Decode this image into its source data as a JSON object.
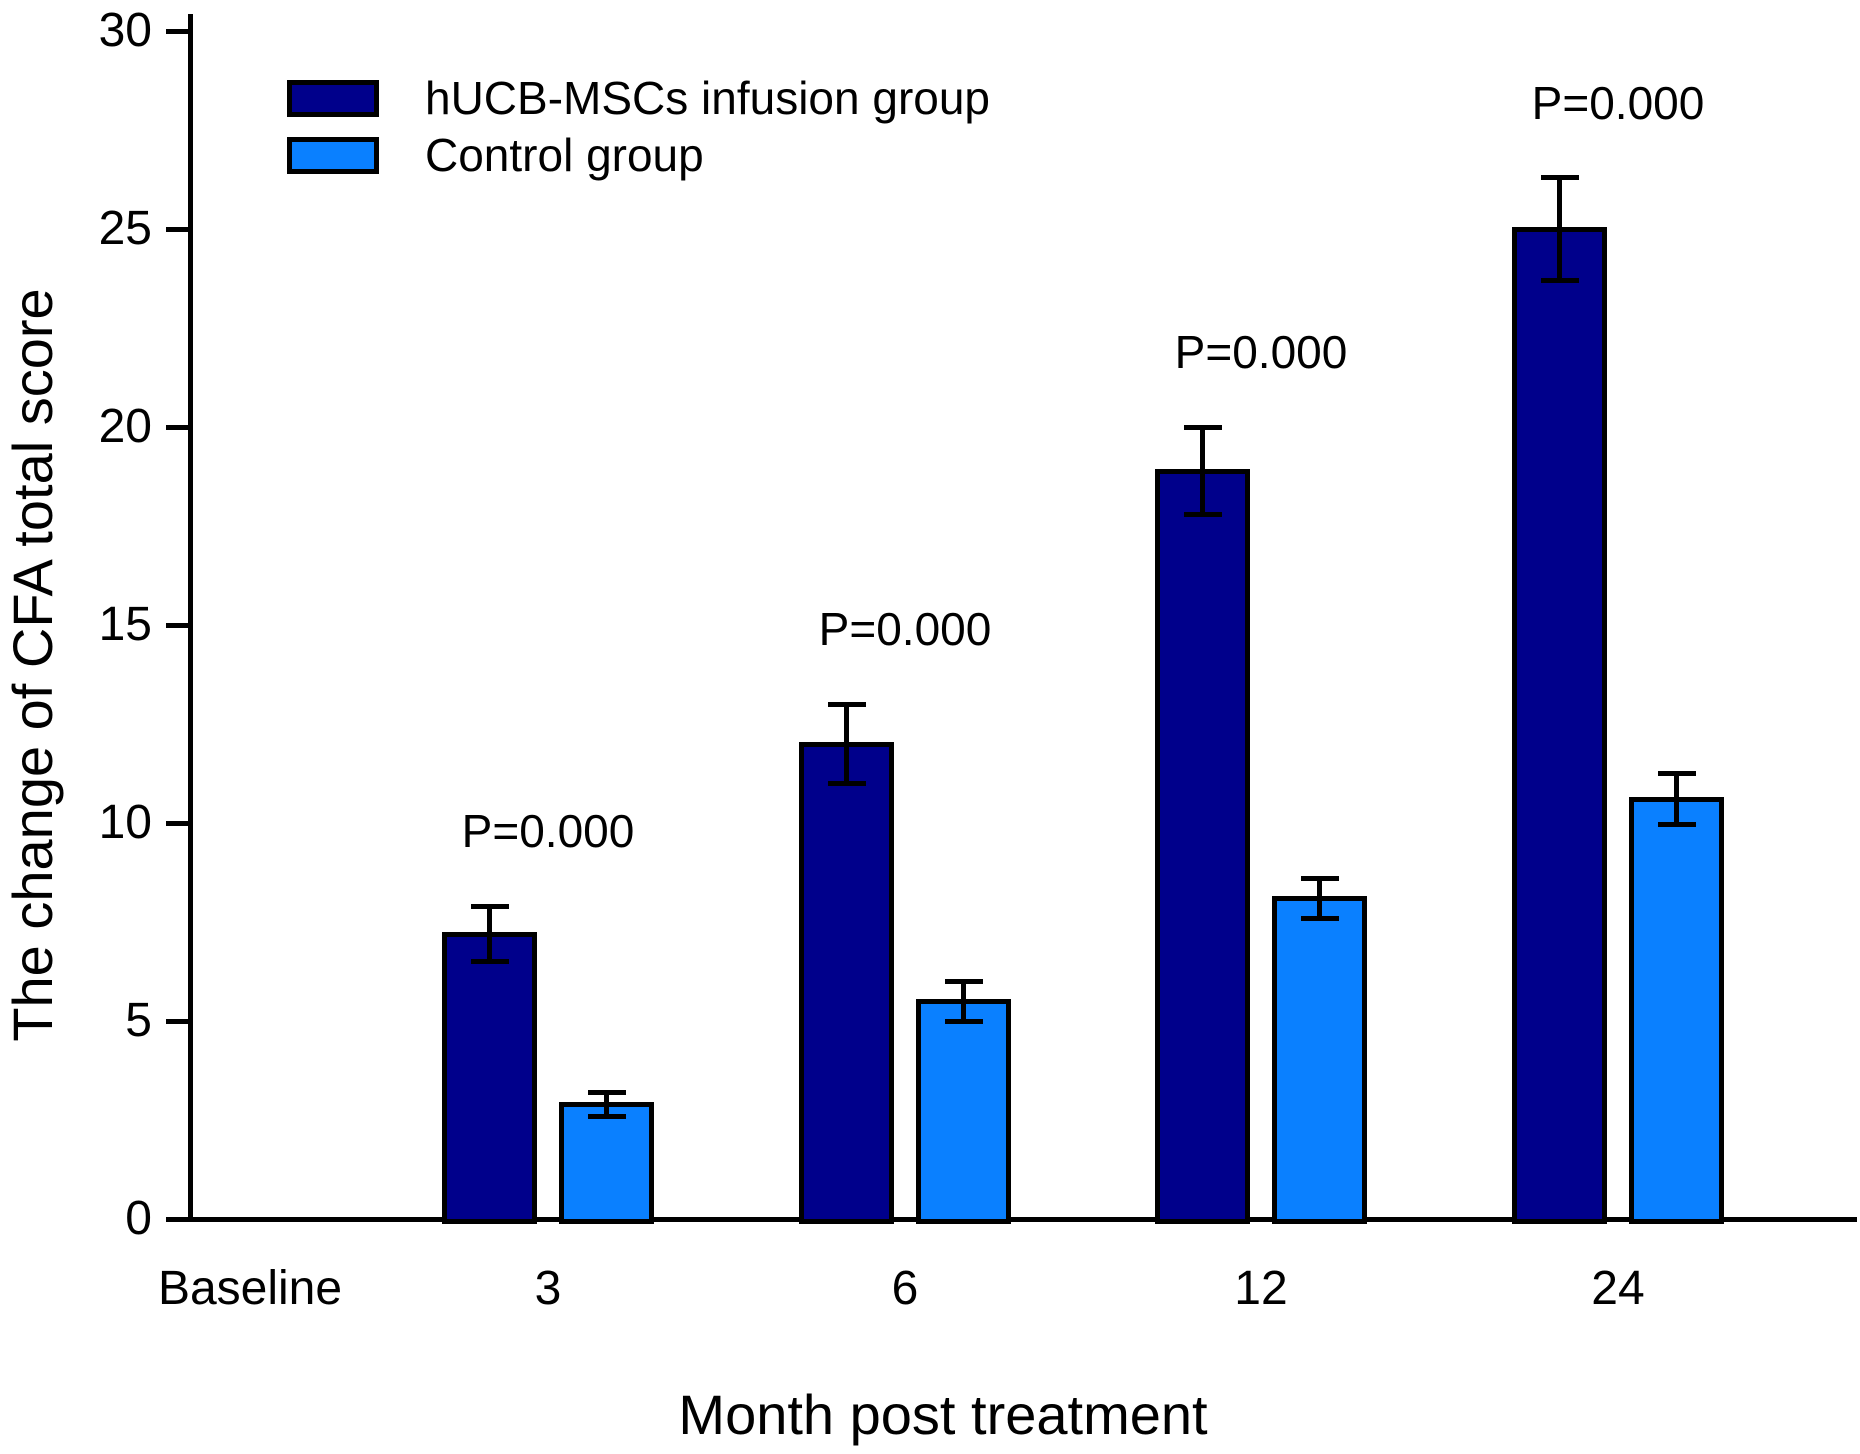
{
  "chart_data": {
    "type": "bar",
    "title": "",
    "xlabel": "Month post treatment",
    "ylabel": "The change of CFA total score",
    "ylim": [
      0,
      30
    ],
    "yticks": [
      0,
      5,
      10,
      15,
      20,
      25,
      30
    ],
    "categories": [
      "Baseline",
      "3",
      "6",
      "12",
      "24"
    ],
    "series": [
      {
        "name": "hUCB-MSCs infusion group",
        "color": "#00008b",
        "values": [
          null,
          7.2,
          12.0,
          18.9,
          25.0
        ],
        "errors": [
          null,
          0.7,
          1.0,
          1.1,
          1.3
        ]
      },
      {
        "name": "Control group",
        "color": "#0a80ff",
        "values": [
          null,
          2.9,
          5.5,
          8.1,
          10.6
        ],
        "errors": [
          null,
          0.3,
          0.5,
          0.5,
          0.65
        ]
      }
    ],
    "annotations": [
      {
        "category": "3",
        "text": "P=0.000"
      },
      {
        "category": "6",
        "text": "P=0.000"
      },
      {
        "category": "12",
        "text": "P=0.000"
      },
      {
        "category": "24",
        "text": "P=0.000"
      }
    ],
    "legend_position": "top-left",
    "grid": false
  }
}
